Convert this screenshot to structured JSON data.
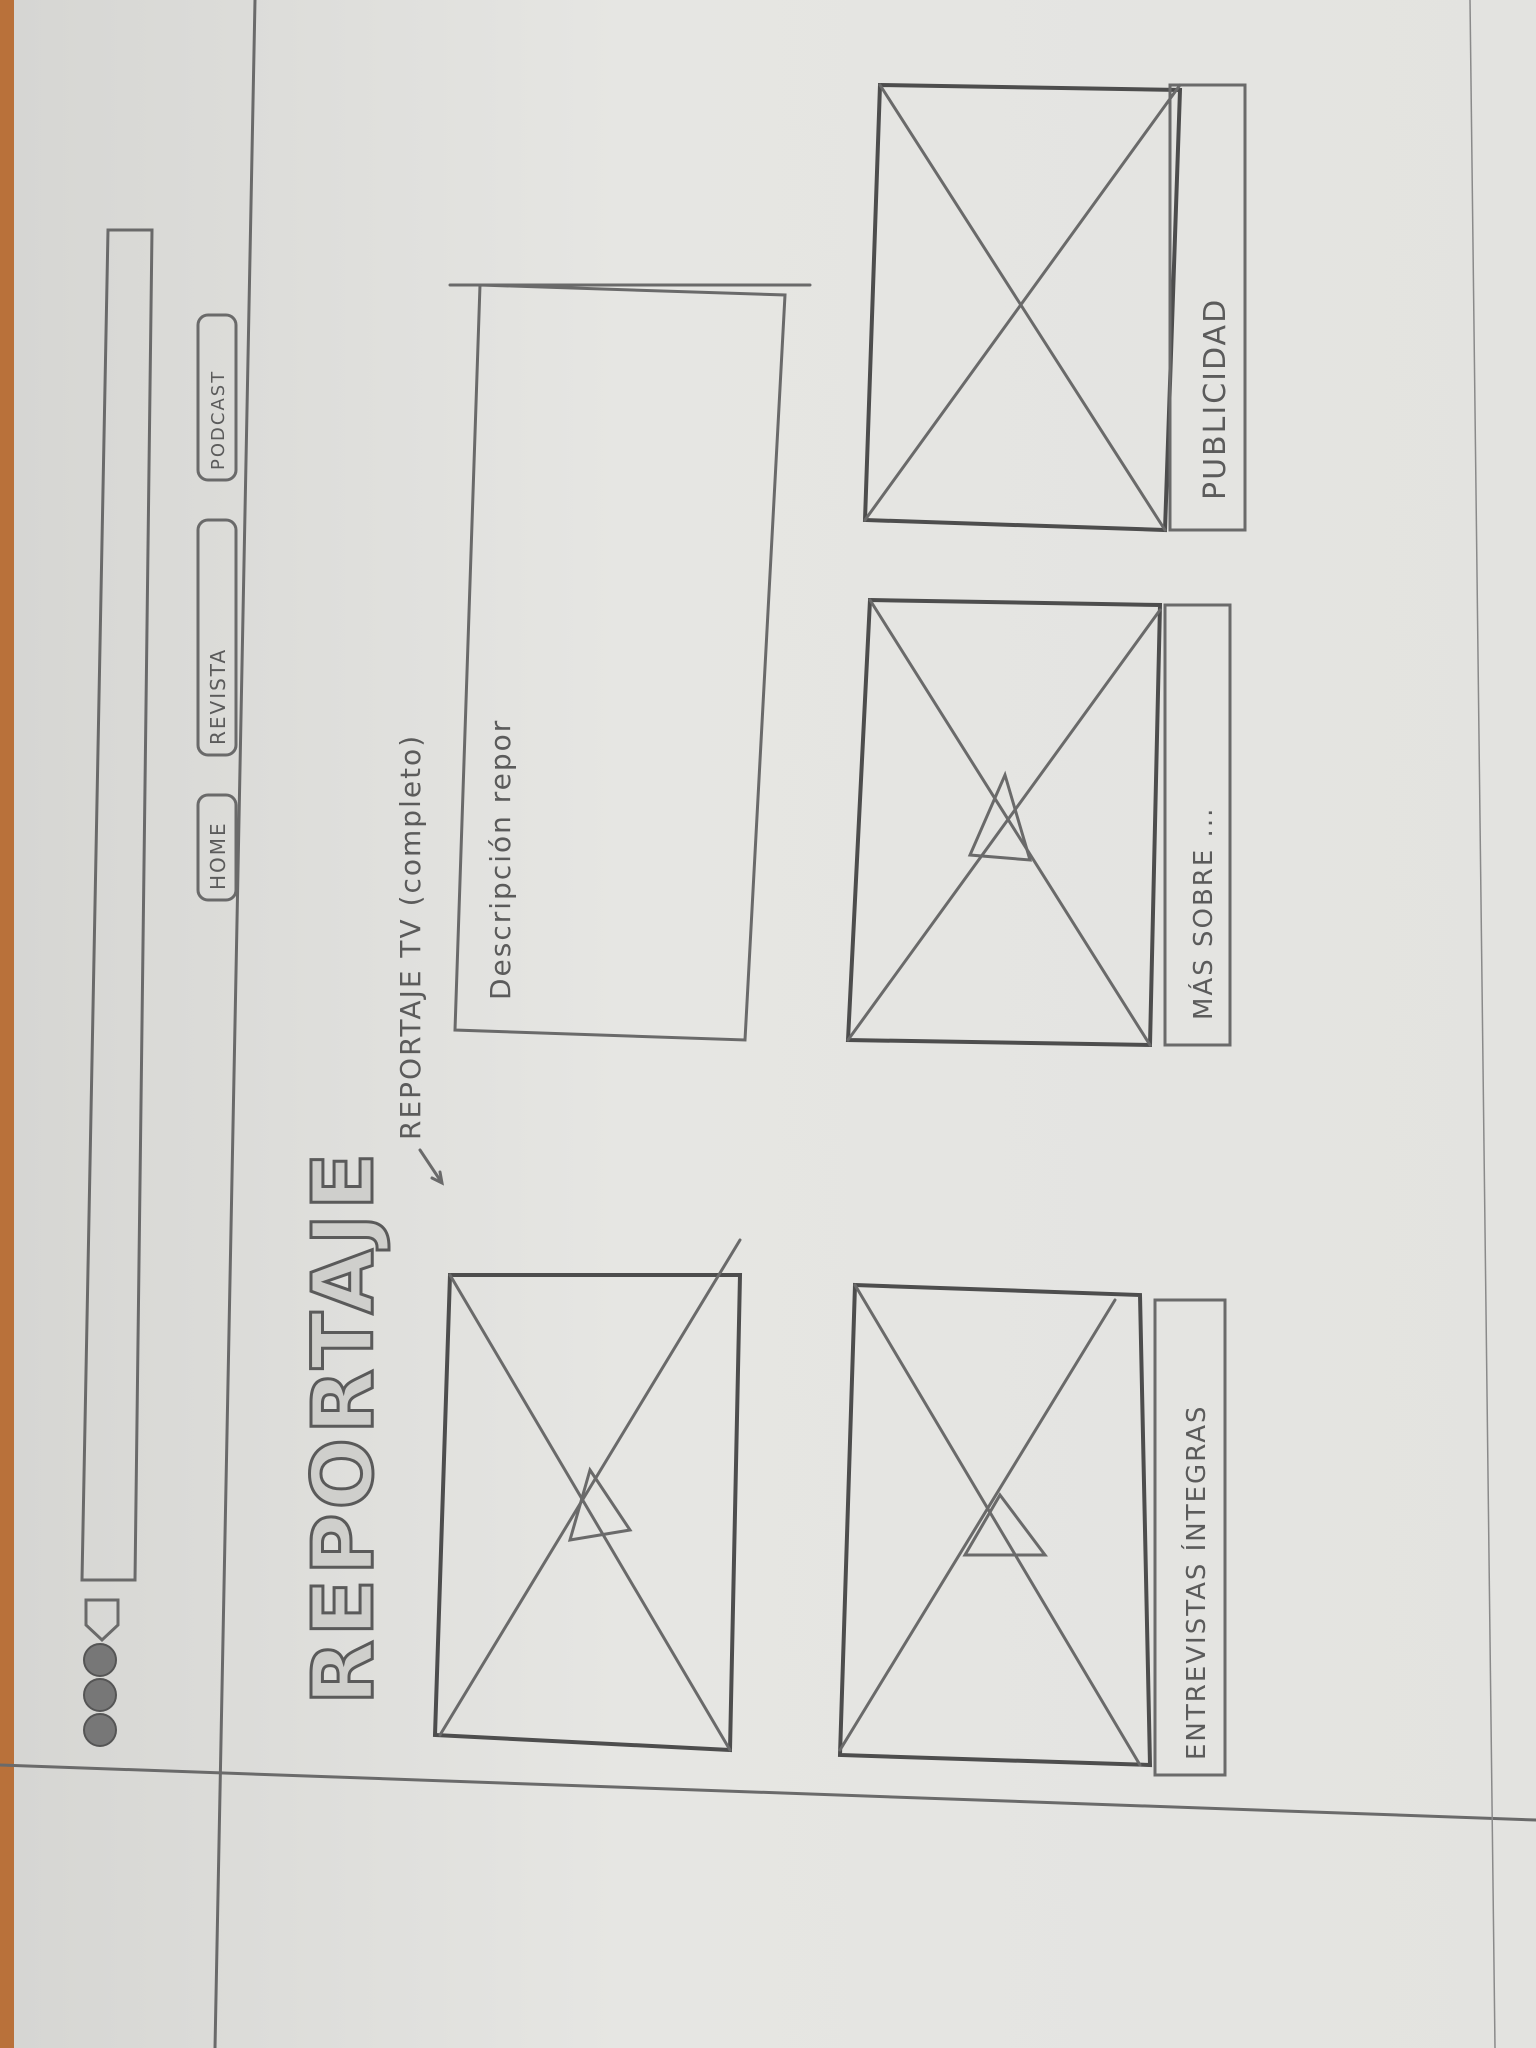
{
  "nav": {
    "home": "HOME",
    "revista": "REVISTA",
    "podcast": "PODCAST"
  },
  "page_title": "REPORTAJE",
  "video_annotation": "REPORTAJE TV (completo)",
  "description_label": "Descripción repor",
  "cards": {
    "entrevistas_label": "ENTREVISTAS ÍNTEGRAS",
    "mas_sobre_label": "MÁS SOBRE ...",
    "publicidad_label": "PUBLICIDAD"
  },
  "icons": {
    "browser_buttons": "circle-buttons-icon",
    "home": "house-icon",
    "image_placeholder": "crossed-box-icon",
    "play": "play-triangle-icon"
  }
}
